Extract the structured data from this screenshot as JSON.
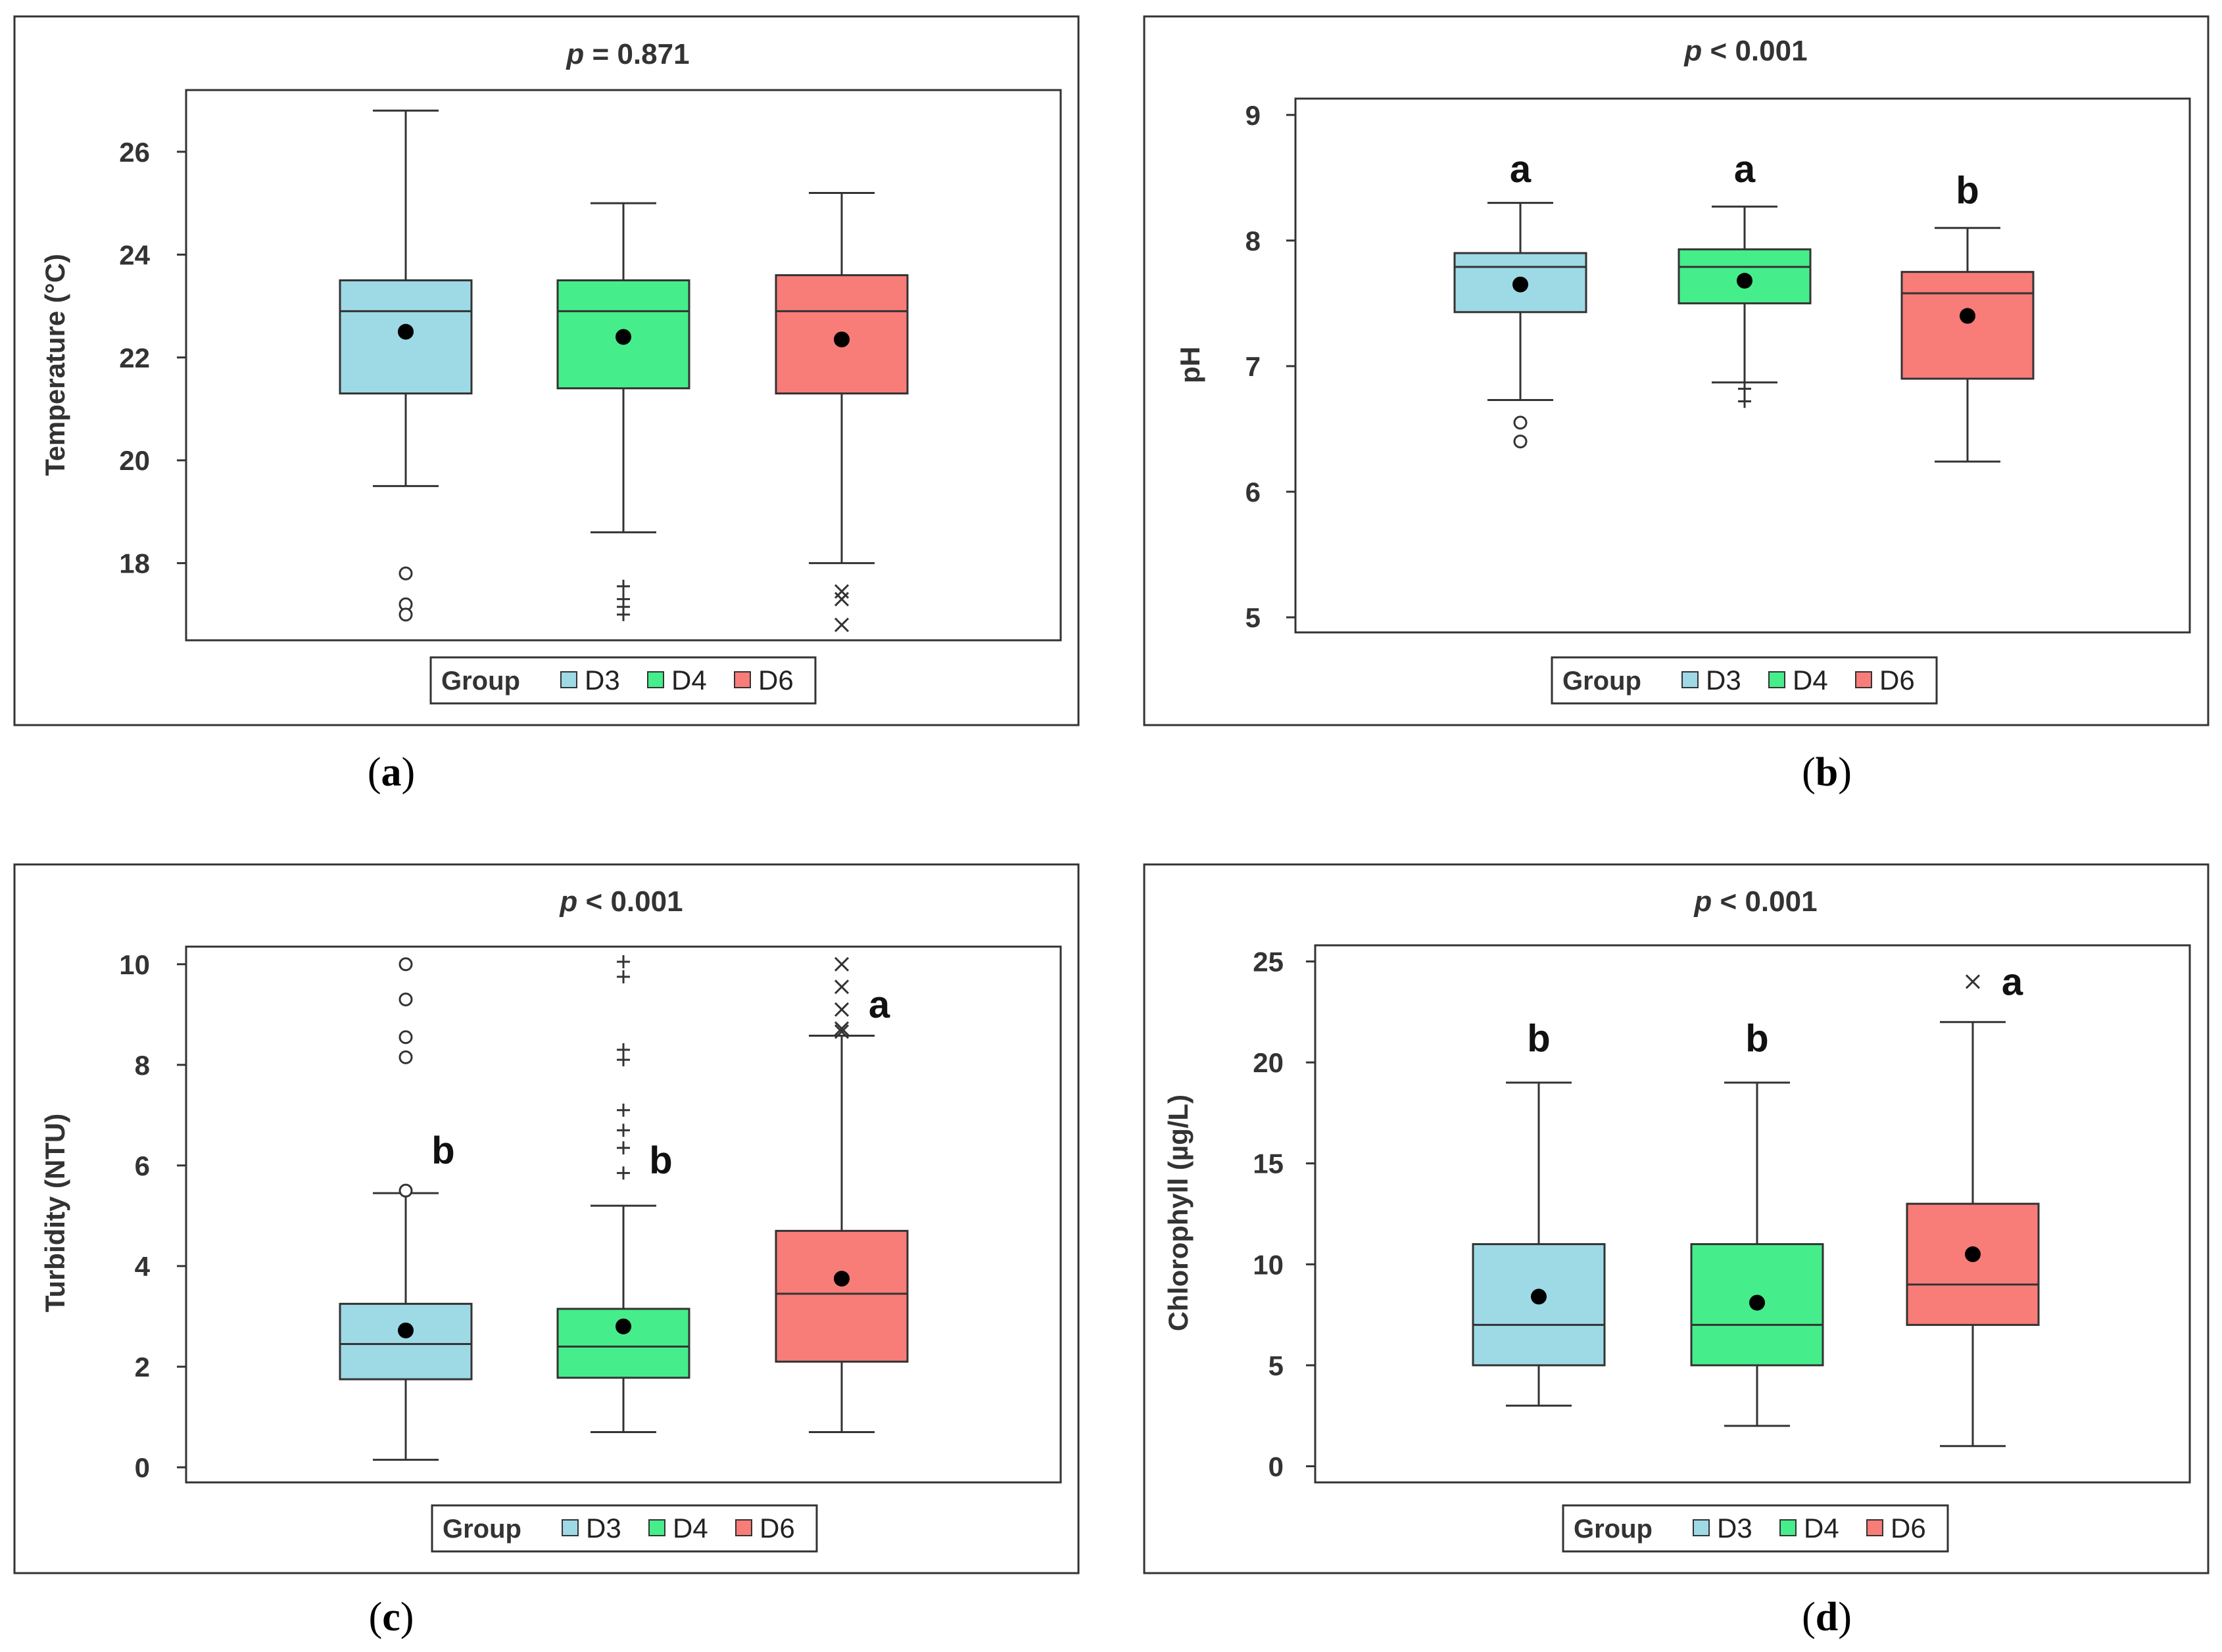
{
  "groups": [
    "D3",
    "D4",
    "D6"
  ],
  "legend_title": "Group",
  "colors": {
    "D3": "#9ed9e6",
    "D4": "#45ee8a",
    "D6": "#f87c78",
    "frame": "#333333",
    "mean": "#000000"
  },
  "chart_data": [
    {
      "id": "a",
      "type": "boxplot",
      "panel_label": "a",
      "title_p": "p",
      "title_rest": " = 0.871",
      "ylabel": "Temperature (°C)",
      "ylim": [
        16.5,
        27.2
      ],
      "yticks": [
        18,
        20,
        22,
        24,
        26
      ],
      "outlier_marker": "mixed",
      "letters": [
        "",
        "",
        ""
      ],
      "boxes": [
        {
          "group": "D3",
          "min": 19.5,
          "q1": 21.3,
          "median": 22.9,
          "q3": 23.5,
          "max": 26.8,
          "mean": 22.5,
          "outliers": [
            17.8,
            17.2,
            17.0
          ],
          "marker": "circle"
        },
        {
          "group": "D4",
          "min": 18.6,
          "q1": 21.4,
          "median": 22.9,
          "q3": 23.5,
          "max": 25.0,
          "mean": 22.4,
          "outliers": [
            17.55,
            17.3,
            17.15,
            17.0
          ],
          "marker": "plus"
        },
        {
          "group": "D6",
          "min": 18.0,
          "q1": 21.3,
          "median": 22.9,
          "q3": 23.6,
          "max": 25.2,
          "mean": 22.35,
          "outliers": [
            17.45,
            17.3,
            16.8
          ],
          "marker": "cross"
        }
      ]
    },
    {
      "id": "b",
      "type": "boxplot",
      "panel_label": "b",
      "title_p": "p",
      "title_rest": " < 0.001",
      "ylabel": "pH",
      "ylim": [
        4.88,
        9.13
      ],
      "yticks": [
        5,
        6,
        7,
        8,
        9
      ],
      "letters": [
        "a",
        "a",
        "b"
      ],
      "letter_values": [
        8.57,
        8.57,
        8.4
      ],
      "boxes": [
        {
          "group": "D3",
          "min": 6.73,
          "q1": 7.43,
          "median": 7.79,
          "q3": 7.9,
          "max": 8.3,
          "mean": 7.65,
          "outliers": [
            6.55,
            6.4
          ],
          "marker": "circle"
        },
        {
          "group": "D4",
          "min": 6.87,
          "q1": 7.5,
          "median": 7.79,
          "q3": 7.93,
          "max": 8.27,
          "mean": 7.68,
          "outliers": [
            6.82,
            6.72
          ],
          "marker": "plus"
        },
        {
          "group": "D6",
          "min": 6.24,
          "q1": 6.9,
          "median": 7.58,
          "q3": 7.75,
          "max": 8.1,
          "mean": 7.4,
          "outliers": [],
          "marker": "cross"
        }
      ]
    },
    {
      "id": "c",
      "type": "boxplot",
      "panel_label": "c",
      "title_p": "p",
      "title_rest": " < 0.001",
      "ylabel": "Turbidity (NTU)",
      "ylim": [
        -0.3,
        10.35
      ],
      "yticks": [
        0,
        2,
        4,
        6,
        8,
        10
      ],
      "letters": [
        "b",
        "b",
        "a"
      ],
      "letter_values": [
        6.3,
        6.1,
        9.2
      ],
      "boxes": [
        {
          "group": "D3",
          "min": 0.15,
          "q1": 1.75,
          "median": 2.45,
          "q3": 3.25,
          "max": 5.45,
          "mean": 2.72,
          "outliers": [
            10.0,
            9.3,
            8.55,
            8.15,
            5.5
          ],
          "marker": "circle"
        },
        {
          "group": "D4",
          "min": 0.7,
          "q1": 1.78,
          "median": 2.4,
          "q3": 3.15,
          "max": 5.2,
          "mean": 2.8,
          "outliers": [
            10.05,
            9.75,
            8.3,
            8.1,
            7.1,
            6.7,
            6.35,
            5.85
          ],
          "marker": "plus"
        },
        {
          "group": "D6",
          "min": 0.7,
          "q1": 2.1,
          "median": 3.45,
          "q3": 4.7,
          "max": 8.58,
          "mean": 3.75,
          "outliers": [
            10.0,
            9.55,
            9.1,
            8.72,
            8.66
          ],
          "marker": "cross"
        }
      ]
    },
    {
      "id": "d",
      "type": "boxplot",
      "panel_label": "d",
      "title_p": "p",
      "title_rest": " < 0.001",
      "ylabel": "Chlorophyll (µg/L)",
      "ylim": [
        -0.8,
        25.8
      ],
      "yticks": [
        0,
        5,
        10,
        15,
        20,
        25
      ],
      "letters": [
        "b",
        "b",
        "a"
      ],
      "letter_values": [
        21.2,
        21.2,
        24.0
      ],
      "boxes": [
        {
          "group": "D3",
          "min": 3.0,
          "q1": 5.0,
          "median": 7.0,
          "q3": 11.0,
          "max": 19.0,
          "mean": 8.4,
          "outliers": [],
          "marker": "circle"
        },
        {
          "group": "D4",
          "min": 2.0,
          "q1": 5.0,
          "median": 7.0,
          "q3": 11.0,
          "max": 19.0,
          "mean": 8.1,
          "outliers": [],
          "marker": "plus"
        },
        {
          "group": "D6",
          "min": 1.0,
          "q1": 7.0,
          "median": 9.0,
          "q3": 13.0,
          "max": 22.0,
          "mean": 10.5,
          "outliers": [
            24.0
          ],
          "marker": "cross"
        }
      ]
    }
  ]
}
